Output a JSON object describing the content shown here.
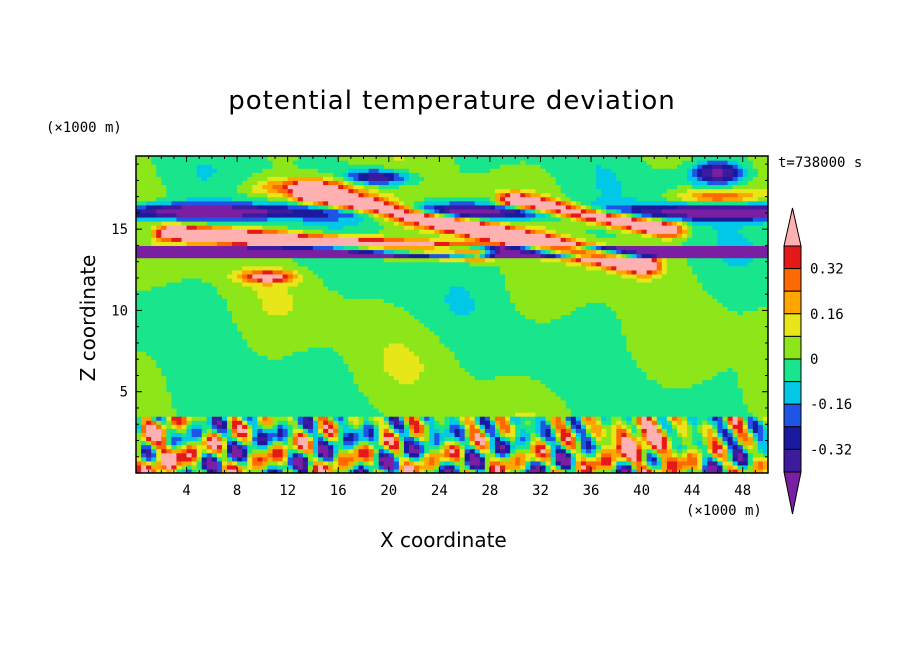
{
  "chart_data": {
    "type": "heatmap",
    "title": "potential temperature deviation",
    "xlabel": "X coordinate",
    "ylabel": "Z coordinate",
    "x_unit": "(×1000 m)",
    "y_unit": "(×1000 m)",
    "time_label": "t=738000 s",
    "xlim": [
      0,
      50
    ],
    "ylim": [
      0,
      19.5
    ],
    "x_ticks": [
      4,
      8,
      12,
      16,
      20,
      24,
      28,
      32,
      36,
      40,
      44,
      48
    ],
    "y_ticks": [
      5,
      10,
      15
    ],
    "colorbar": {
      "levels": [
        -0.48,
        -0.4,
        -0.32,
        -0.24,
        -0.16,
        -0.08,
        0,
        0.08,
        0.16,
        0.24,
        0.32,
        0.4,
        0.48
      ],
      "colors": [
        "#7b1fa2",
        "#3d1a9e",
        "#1a1a9e",
        "#1f55e6",
        "#00c8e6",
        "#19e68c",
        "#8ce619",
        "#e6e619",
        "#ffa500",
        "#ff6a00",
        "#e61919",
        "#ffb0b0"
      ],
      "labels": [
        "0.32",
        "0.16",
        "0",
        "-0.16",
        "-0.32"
      ],
      "label_values": [
        0.32,
        0.16,
        0,
        -0.16,
        -0.32
      ]
    },
    "features": [
      {
        "name": "background",
        "z_range": [
          3.5,
          12.5
        ],
        "value": 0.0
      },
      {
        "name": "upper warm band",
        "x_range": [
          4,
          26
        ],
        "z_range": [
          13.8,
          15.2
        ],
        "value": 0.5
      },
      {
        "name": "upper warm band",
        "x_range": [
          14,
          38
        ],
        "z_range": [
          13.0,
          17.2
        ],
        "value": 0.5
      },
      {
        "name": "upper cold band",
        "x_range": [
          0,
          50
        ],
        "z_range": [
          13.4,
          14.0
        ],
        "value": -0.45
      },
      {
        "name": "upper cold band",
        "x_range": [
          0,
          50
        ],
        "z_range": [
          15.8,
          16.6
        ],
        "value": -0.4
      },
      {
        "name": "lower turbulent layer",
        "z_range": [
          0,
          3.5
        ],
        "value": "mixed"
      }
    ]
  }
}
